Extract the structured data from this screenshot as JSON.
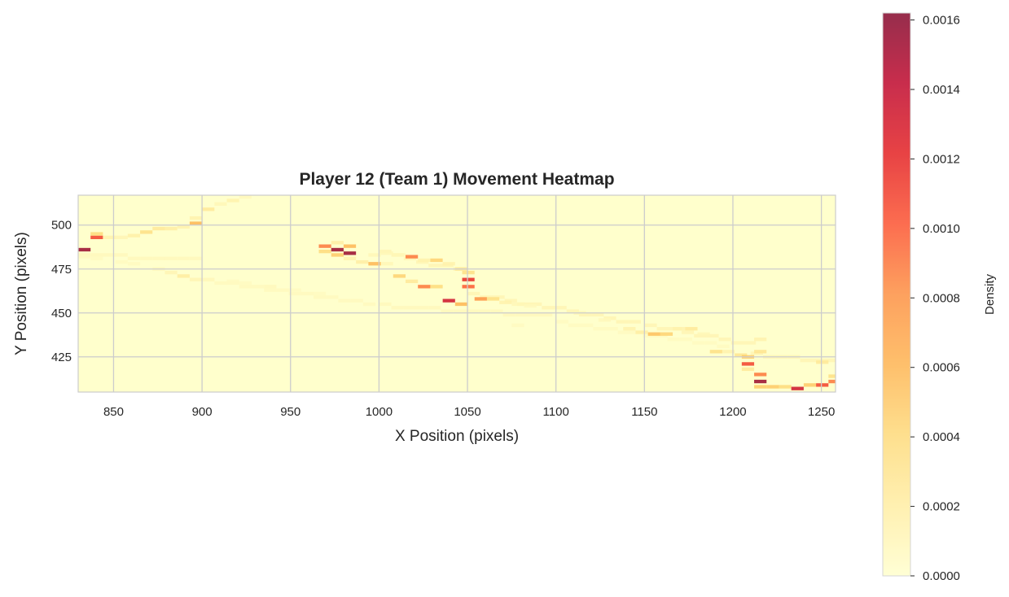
{
  "chart_data": {
    "type": "heatmap",
    "title": "Player 12 (Team 1) Movement Heatmap",
    "xlabel": "X Position (pixels)",
    "ylabel": "Y Position (pixels)",
    "xlim": [
      830,
      1258
    ],
    "ylim": [
      405,
      517
    ],
    "xticks": [
      850,
      900,
      950,
      1000,
      1050,
      1100,
      1150,
      1200,
      1250
    ],
    "yticks": [
      425,
      450,
      475,
      500
    ],
    "grid": true,
    "bin_size": [
      7,
      2
    ],
    "colorbar": {
      "label": "Density",
      "min": 0,
      "max": 0.00162,
      "ticks": [
        0.0,
        0.0002,
        0.0004,
        0.0006,
        0.0008,
        0.001,
        0.0012,
        0.0014,
        0.0016
      ],
      "tick_labels": [
        "0.0000",
        "0.0002",
        "0.0004",
        "0.0006",
        "0.0008",
        "0.0010",
        "0.0012",
        "0.0014",
        "0.0016"
      ],
      "colors": [
        "#ffffcc",
        "#ffeda0",
        "#fed976",
        "#feb24c",
        "#fd8d3c",
        "#fc4e2a",
        "#e31a1c",
        "#bd0026",
        "#800026"
      ]
    },
    "cells": [
      [
        830,
        485,
        0.00155
      ],
      [
        830,
        481,
        6e-05
      ],
      [
        837,
        492,
        0.0011
      ],
      [
        837,
        494,
        0.0004
      ],
      [
        837,
        480,
        6e-05
      ],
      [
        844,
        492,
        0.00015
      ],
      [
        851,
        492,
        0.00012
      ],
      [
        851,
        478,
        6e-05
      ],
      [
        858,
        493,
        0.00018
      ],
      [
        858,
        477,
        6e-05
      ],
      [
        865,
        495,
        0.00035
      ],
      [
        872,
        497,
        0.00025
      ],
      [
        872,
        474,
        8e-05
      ],
      [
        879,
        497,
        0.0002
      ],
      [
        879,
        472,
        0.00012
      ],
      [
        886,
        498,
        0.00015
      ],
      [
        886,
        470,
        0.00022
      ],
      [
        893,
        500,
        0.0006
      ],
      [
        893,
        503,
        0.00015
      ],
      [
        893,
        468,
        0.00012
      ],
      [
        900,
        508,
        0.00025
      ],
      [
        900,
        468,
        8e-05
      ],
      [
        907,
        511,
        0.0001
      ],
      [
        914,
        513,
        0.00015
      ],
      [
        914,
        467,
        6e-05
      ],
      [
        921,
        515,
        8e-05
      ],
      [
        921,
        466,
        6e-05
      ],
      [
        935,
        464,
        8e-05
      ],
      [
        949,
        462,
        6e-05
      ],
      [
        963,
        460,
        6e-05
      ],
      [
        966,
        487,
        0.0009
      ],
      [
        966,
        484,
        0.0004
      ],
      [
        973,
        485,
        0.00155
      ],
      [
        973,
        482,
        0.0005
      ],
      [
        973,
        489,
        0.0002
      ],
      [
        980,
        487,
        0.0006
      ],
      [
        980,
        483,
        0.00155
      ],
      [
        980,
        480,
        0.00015
      ],
      [
        987,
        478,
        0.0002
      ],
      [
        994,
        477,
        0.0006
      ],
      [
        994,
        482,
        0.0001
      ],
      [
        1001,
        477,
        0.0001
      ],
      [
        1001,
        483,
        0.0001
      ],
      [
        1008,
        470,
        0.00045
      ],
      [
        1008,
        482,
        0.0001
      ],
      [
        1015,
        467,
        0.00025
      ],
      [
        1015,
        481,
        0.0009
      ],
      [
        1022,
        464,
        0.0009
      ],
      [
        1022,
        479,
        0.00015
      ],
      [
        1029,
        464,
        0.0004
      ],
      [
        1029,
        479,
        0.00045
      ],
      [
        1036,
        456,
        0.00135
      ],
      [
        1036,
        477,
        0.00015
      ],
      [
        1043,
        454,
        0.0006
      ],
      [
        1043,
        474,
        0.00025
      ],
      [
        1047,
        468,
        0.0012
      ],
      [
        1047,
        464,
        0.001
      ],
      [
        1047,
        472,
        0.00035
      ],
      [
        1054,
        457,
        0.0008
      ],
      [
        1061,
        457,
        0.00035
      ],
      [
        1068,
        455,
        0.00015
      ],
      [
        1075,
        454,
        0.0001
      ],
      [
        1082,
        453,
        8e-05
      ],
      [
        1075,
        442,
        6e-05
      ],
      [
        1110,
        449,
        0.0001
      ],
      [
        1124,
        445,
        8e-05
      ],
      [
        1138,
        440,
        0.00015
      ],
      [
        1145,
        438,
        0.0002
      ],
      [
        1152,
        437,
        0.00055
      ],
      [
        1159,
        437,
        0.00045
      ],
      [
        1166,
        440,
        0.00015
      ],
      [
        1173,
        440,
        0.00025
      ],
      [
        1180,
        437,
        0.0001
      ],
      [
        1187,
        427,
        0.00035
      ],
      [
        1194,
        427,
        0.00015
      ],
      [
        1201,
        425,
        0.0003
      ],
      [
        1205,
        420,
        0.0011
      ],
      [
        1205,
        424,
        0.0005
      ],
      [
        1205,
        417,
        0.00025
      ],
      [
        1212,
        410,
        0.00155
      ],
      [
        1212,
        414,
        0.0009
      ],
      [
        1212,
        407,
        0.0005
      ],
      [
        1212,
        427,
        0.0003
      ],
      [
        1212,
        434,
        0.00015
      ],
      [
        1219,
        407,
        0.0005
      ],
      [
        1226,
        407,
        0.0004
      ],
      [
        1233,
        406,
        0.00135
      ],
      [
        1240,
        408,
        0.0005
      ],
      [
        1247,
        408,
        0.0011
      ],
      [
        1247,
        421,
        0.00025
      ],
      [
        1254,
        410,
        0.0009
      ],
      [
        1254,
        413,
        0.00035
      ]
    ],
    "bands": [
      [
        830,
        482,
        900,
        479,
        8e-05
      ],
      [
        900,
        468,
        1000,
        453,
        7e-05
      ],
      [
        1000,
        453,
        1100,
        447,
        8e-05
      ],
      [
        1000,
        483,
        1050,
        472,
        0.00012
      ],
      [
        1050,
        460,
        1150,
        442,
        0.00012
      ],
      [
        1150,
        442,
        1210,
        430,
        0.00012
      ],
      [
        1100,
        443,
        1200,
        430,
        6e-05
      ],
      [
        1210,
        425,
        1258,
        421,
        0.00012
      ]
    ]
  }
}
